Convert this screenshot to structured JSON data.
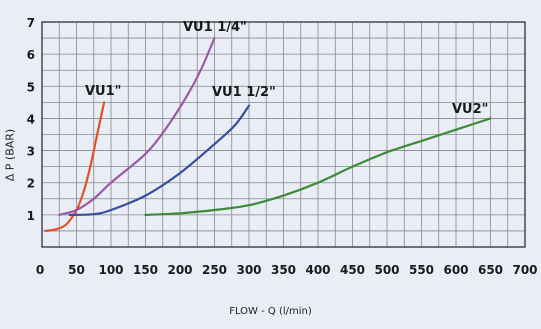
{
  "chart_data": {
    "type": "line",
    "xlabel": "FLOW - Q (l/min)",
    "ylabel": "Δ P (BAR)",
    "xlim": [
      0,
      700
    ],
    "ylim": [
      0,
      7
    ],
    "x_ticks": [
      0,
      50,
      100,
      150,
      200,
      250,
      300,
      350,
      400,
      450,
      500,
      550,
      600,
      650,
      700
    ],
    "y_ticks": [
      0,
      1,
      2,
      3,
      4,
      5,
      6,
      7
    ],
    "grid": true,
    "series": [
      {
        "name": "VU1\"",
        "color": "#e2522a",
        "points": [
          [
            5,
            0.5
          ],
          [
            20,
            0.55
          ],
          [
            35,
            0.7
          ],
          [
            50,
            1.15
          ],
          [
            60,
            1.7
          ],
          [
            70,
            2.5
          ],
          [
            80,
            3.5
          ],
          [
            90,
            4.5
          ]
        ]
      },
      {
        "name": "VU1 1/4\"",
        "color": "#9a5aa8",
        "points": [
          [
            25,
            1.0
          ],
          [
            50,
            1.15
          ],
          [
            75,
            1.5
          ],
          [
            100,
            2.0
          ],
          [
            150,
            2.9
          ],
          [
            180,
            3.7
          ],
          [
            210,
            4.7
          ],
          [
            230,
            5.5
          ],
          [
            250,
            6.5
          ]
        ]
      },
      {
        "name": "VU1 1/2\"",
        "color": "#3a4ea0",
        "points": [
          [
            40,
            1.0
          ],
          [
            75,
            1.02
          ],
          [
            100,
            1.15
          ],
          [
            150,
            1.6
          ],
          [
            200,
            2.3
          ],
          [
            250,
            3.2
          ],
          [
            280,
            3.8
          ],
          [
            300,
            4.4
          ]
        ]
      },
      {
        "name": "VU2\"",
        "color": "#3f8a3a",
        "points": [
          [
            150,
            1.0
          ],
          [
            200,
            1.05
          ],
          [
            250,
            1.15
          ],
          [
            300,
            1.3
          ],
          [
            350,
            1.6
          ],
          [
            400,
            2.0
          ],
          [
            450,
            2.5
          ],
          [
            500,
            2.95
          ],
          [
            550,
            3.3
          ],
          [
            600,
            3.65
          ],
          [
            650,
            4.0
          ]
        ]
      }
    ],
    "background_color": "#e9edf5",
    "grid_color": "#888888"
  }
}
